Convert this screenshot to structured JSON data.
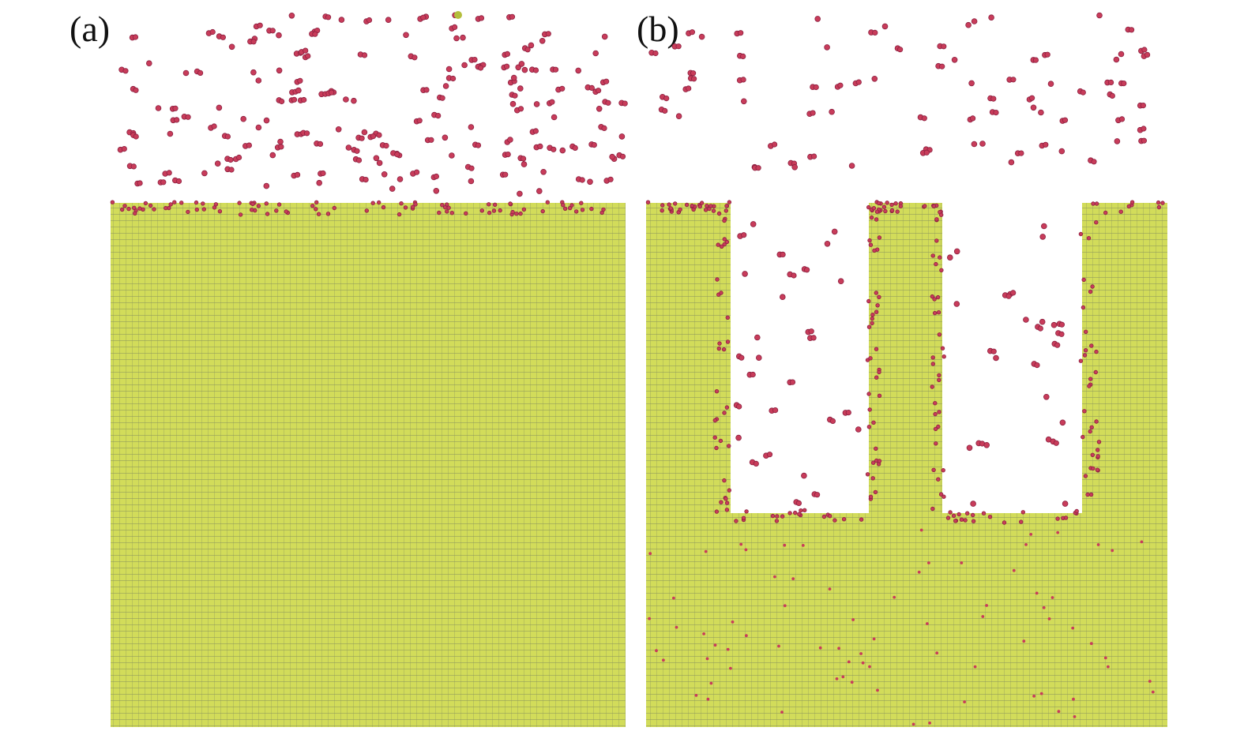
{
  "figure": {
    "panels": [
      {
        "id": "a",
        "label": "(a)",
        "substrate": "flat"
      },
      {
        "id": "b",
        "label": "(b)",
        "substrate": "trenched"
      }
    ]
  },
  "colors": {
    "background": "#ffffff",
    "substrate": "#d2dc5a",
    "grid_line": "#8c965a",
    "particle": "#c83c5a",
    "particle_edge": "#8c2040",
    "stray_atom": "#b4be3c"
  }
}
